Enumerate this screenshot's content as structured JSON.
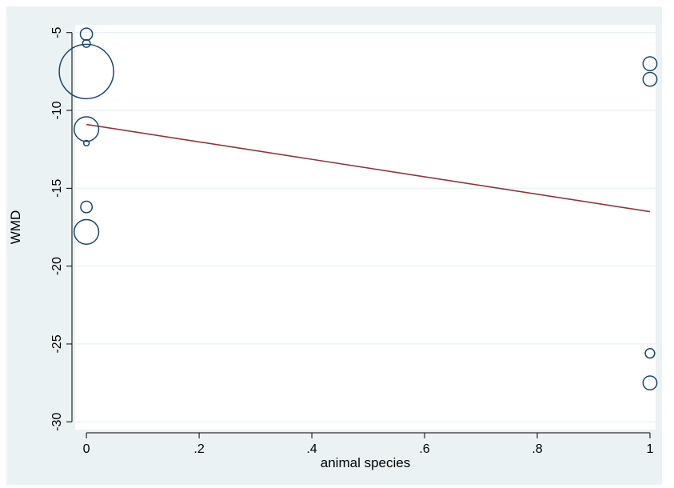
{
  "chart_data": {
    "type": "scatter",
    "title": "",
    "xlabel": "animal species",
    "ylabel": "WMD",
    "xlim": [
      -0.02,
      1.01
    ],
    "ylim": [
      -30.5,
      -4.5
    ],
    "x_ticks": [
      0,
      0.2,
      0.4,
      0.6,
      0.8,
      1
    ],
    "x_tick_labels": [
      "0",
      ".2",
      ".4",
      ".6",
      ".8",
      "1"
    ],
    "y_ticks": [
      -5,
      -10,
      -15,
      -20,
      -25,
      -30
    ],
    "y_tick_labels": [
      "-5",
      "-10",
      "-15",
      "-20",
      "-25",
      "-30"
    ],
    "grid": "horizontal",
    "points": [
      {
        "x": 0,
        "y": -5.1,
        "weight": 1.0
      },
      {
        "x": 0,
        "y": -5.7,
        "weight": 0.4
      },
      {
        "x": 0,
        "y": -7.5,
        "weight": 20.0
      },
      {
        "x": 0,
        "y": -11.2,
        "weight": 4.1
      },
      {
        "x": 0,
        "y": -12.1,
        "weight": 0.2
      },
      {
        "x": 0,
        "y": -16.2,
        "weight": 0.9
      },
      {
        "x": 0,
        "y": -17.8,
        "weight": 4.1
      },
      {
        "x": 1,
        "y": -7.0,
        "weight": 1.3
      },
      {
        "x": 1,
        "y": -8.0,
        "weight": 1.3
      },
      {
        "x": 1,
        "y": -25.6,
        "weight": 0.6
      },
      {
        "x": 1,
        "y": -27.5,
        "weight": 1.3
      }
    ],
    "fit_line": {
      "x": [
        0,
        1
      ],
      "y": [
        -10.9,
        -16.5
      ]
    },
    "colors": {
      "background": "#eaf2f3",
      "plot_area": "#ffffff",
      "grid": "#eaf2f3",
      "marker": "#1a476f",
      "fit_line": "#90353b"
    }
  }
}
